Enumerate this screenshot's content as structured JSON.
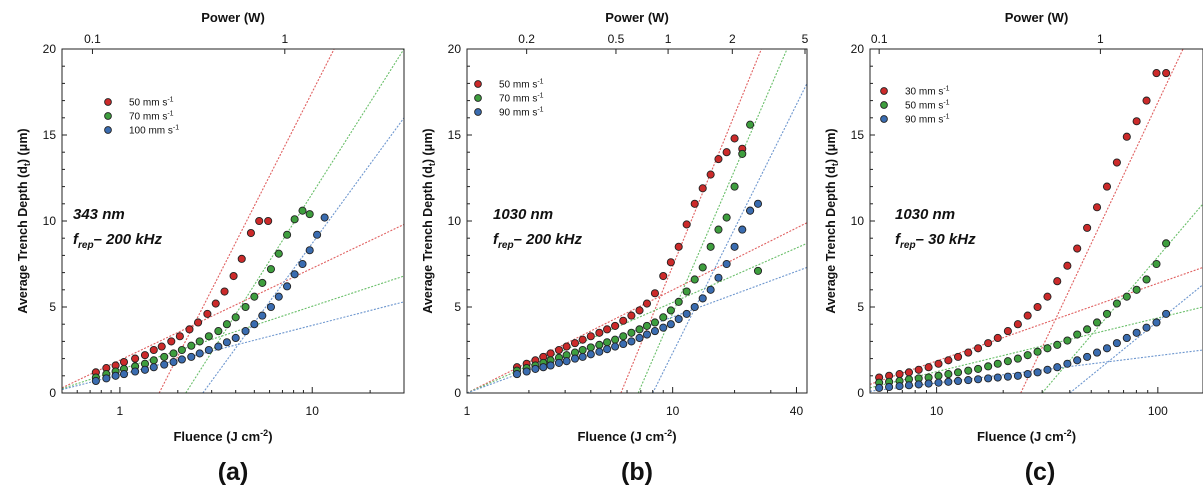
{
  "chart_data": [
    {
      "type": "scatter",
      "panel_label": "(a)",
      "xlabel": "Fluence  (J cm",
      "xlabel_sup": "-2",
      "xlabel_end": ")",
      "ylabel": "Average Trench Depth (d",
      "ylabel_sub": "t",
      "ylabel_end": ") (μm)",
      "top_axis_title": "Power (W)",
      "x_scale": "log",
      "xlim": [
        0.5,
        30
      ],
      "ylim": [
        0,
        20
      ],
      "x_ticks": [
        1,
        10
      ],
      "x_tick_labels": [
        "1",
        "10"
      ],
      "y_ticks": [
        0,
        5,
        10,
        15,
        20
      ],
      "y_tick_labels": [
        "0",
        "5",
        "10",
        "15",
        "20"
      ],
      "top_ticks": [
        {
          "label": "0.1",
          "x": 0.72
        },
        {
          "label": "1",
          "x": 7.2
        }
      ],
      "annotation": {
        "wavelength": "343 nm",
        "f": "f",
        "sub": "rep",
        "rate": "– 200 kHz"
      },
      "legend_position": "top-left",
      "grid": false,
      "series": [
        {
          "name": "50 mm s",
          "unit_sup": "-1",
          "color": "#cc2a2a",
          "x": [
            0.75,
            0.85,
            0.95,
            1.05,
            1.2,
            1.35,
            1.5,
            1.65,
            1.85,
            2.05,
            2.3,
            2.55,
            2.85,
            3.15,
            3.5,
            3.9,
            4.3,
            4.8,
            5.3,
            5.9
          ],
          "y": [
            1.2,
            1.45,
            1.6,
            1.8,
            2.0,
            2.2,
            2.5,
            2.7,
            3.0,
            3.3,
            3.7,
            4.1,
            4.6,
            5.2,
            5.9,
            6.8,
            7.8,
            9.3,
            10.0,
            10.0
          ]
        },
        {
          "name": "70 mm s",
          "unit_sup": "-1",
          "color": "#3e9e3e",
          "x": [
            0.75,
            0.85,
            0.95,
            1.05,
            1.2,
            1.35,
            1.5,
            1.7,
            1.9,
            2.1,
            2.35,
            2.6,
            2.9,
            3.25,
            3.6,
            4.0,
            4.5,
            5.0,
            5.5,
            6.1,
            6.7,
            7.4,
            8.1,
            8.9,
            9.7
          ],
          "y": [
            0.9,
            1.1,
            1.25,
            1.4,
            1.55,
            1.7,
            1.9,
            2.1,
            2.3,
            2.5,
            2.75,
            3.0,
            3.3,
            3.6,
            4.0,
            4.4,
            5.0,
            5.6,
            6.4,
            7.2,
            8.1,
            9.2,
            10.1,
            10.6,
            10.4
          ]
        },
        {
          "name": "100 mm s",
          "unit_sup": "-1",
          "color": "#3a6cb0",
          "x": [
            0.75,
            0.85,
            0.95,
            1.05,
            1.2,
            1.35,
            1.5,
            1.7,
            1.9,
            2.1,
            2.35,
            2.6,
            2.9,
            3.25,
            3.6,
            4.0,
            4.5,
            5.0,
            5.5,
            6.1,
            6.7,
            7.4,
            8.1,
            8.9,
            9.7,
            10.6,
            11.6
          ],
          "y": [
            0.7,
            0.85,
            1.0,
            1.1,
            1.25,
            1.35,
            1.5,
            1.65,
            1.8,
            1.95,
            2.1,
            2.3,
            2.5,
            2.7,
            2.95,
            3.2,
            3.6,
            4.0,
            4.5,
            5.0,
            5.6,
            6.2,
            6.9,
            7.5,
            8.3,
            9.2,
            10.2
          ]
        }
      ],
      "fit_lines": [
        {
          "color": "#e06060",
          "x": [
            0.5,
            30
          ],
          "y": [
            0.3,
            9.8
          ]
        },
        {
          "color": "#e06060",
          "x": [
            1.6,
            13
          ],
          "y": [
            0,
            20
          ]
        },
        {
          "color": "#6abf6a",
          "x": [
            0.5,
            30
          ],
          "y": [
            0.25,
            6.8
          ]
        },
        {
          "color": "#6abf6a",
          "x": [
            2.2,
            30
          ],
          "y": [
            0,
            20
          ]
        },
        {
          "color": "#6e97cf",
          "x": [
            0.5,
            30
          ],
          "y": [
            0.2,
            5.3
          ]
        },
        {
          "color": "#6e97cf",
          "x": [
            2.7,
            30
          ],
          "y": [
            0,
            16
          ]
        }
      ]
    },
    {
      "type": "scatter",
      "panel_label": "(b)",
      "xlabel": "Fluence  (J cm",
      "xlabel_sup": "-2",
      "xlabel_end": ")",
      "top_axis_title": "Power (W)",
      "x_scale": "log",
      "xlim": [
        1,
        45
      ],
      "ylim": [
        0,
        20
      ],
      "x_ticks": [
        1,
        10,
        40
      ],
      "x_tick_labels": [
        "1",
        "10",
        "40"
      ],
      "y_ticks": [
        0,
        5,
        10,
        15,
        20
      ],
      "y_tick_labels": [
        "0",
        "5",
        "10",
        "15",
        "20"
      ],
      "top_ticks": [
        {
          "label": "0.2",
          "x": 1.95
        },
        {
          "label": "0.5",
          "x": 5.3
        },
        {
          "label": "1",
          "x": 9.5
        },
        {
          "label": "2",
          "x": 19.5
        },
        {
          "label": "5",
          "x": 44
        }
      ],
      "annotation": {
        "wavelength": "1030 nm",
        "f": "f",
        "sub": "rep",
        "rate": "– 200 kHz"
      },
      "legend_position": "top-left",
      "grid": false,
      "series": [
        {
          "name": "50 mm s",
          "unit_sup": "-1",
          "color": "#cc2a2a",
          "x": [
            1.75,
            1.95,
            2.15,
            2.35,
            2.55,
            2.8,
            3.05,
            3.35,
            3.65,
            4.0,
            4.4,
            4.8,
            5.25,
            5.75,
            6.3,
            6.9,
            7.5,
            8.2,
            9.0,
            9.8,
            10.7,
            11.7,
            12.8,
            14.0,
            15.3,
            16.7,
            18.3,
            20.0,
            21.8,
            23.8
          ],
          "y": [
            1.5,
            1.7,
            1.9,
            2.1,
            2.3,
            2.5,
            2.7,
            2.9,
            3.1,
            3.3,
            3.5,
            3.7,
            3.9,
            4.2,
            4.5,
            4.8,
            5.2,
            5.8,
            6.8,
            7.6,
            8.5,
            9.8,
            11.0,
            11.9,
            12.7,
            13.6,
            14.0,
            14.8,
            14.2,
            10.6
          ]
        },
        {
          "name": "70 mm s",
          "unit_sup": "-1",
          "color": "#3e9e3e",
          "x": [
            1.75,
            1.95,
            2.15,
            2.35,
            2.55,
            2.8,
            3.05,
            3.35,
            3.65,
            4.0,
            4.4,
            4.8,
            5.25,
            5.75,
            6.3,
            6.9,
            7.5,
            8.2,
            9.0,
            9.8,
            10.7,
            11.7,
            12.8,
            14.0,
            15.3,
            16.7,
            18.3,
            20.0,
            21.8,
            23.8,
            26.0
          ],
          "y": [
            1.3,
            1.45,
            1.6,
            1.75,
            1.9,
            2.05,
            2.2,
            2.35,
            2.5,
            2.65,
            2.8,
            2.95,
            3.1,
            3.3,
            3.5,
            3.7,
            3.9,
            4.1,
            4.4,
            4.8,
            5.3,
            5.9,
            6.6,
            7.3,
            8.5,
            9.5,
            10.2,
            12.0,
            13.9,
            15.6,
            7.1
          ]
        },
        {
          "name": "90 mm s",
          "unit_sup": "-1",
          "color": "#3a6cb0",
          "x": [
            1.75,
            1.95,
            2.15,
            2.35,
            2.55,
            2.8,
            3.05,
            3.35,
            3.65,
            4.0,
            4.4,
            4.8,
            5.25,
            5.75,
            6.3,
            6.9,
            7.5,
            8.2,
            9.0,
            9.8,
            10.7,
            11.7,
            12.8,
            14.0,
            15.3,
            16.7,
            18.3,
            20.0,
            21.8,
            23.8,
            26.0
          ],
          "y": [
            1.1,
            1.25,
            1.4,
            1.5,
            1.6,
            1.75,
            1.85,
            2.0,
            2.1,
            2.25,
            2.4,
            2.55,
            2.7,
            2.85,
            3.0,
            3.2,
            3.4,
            3.6,
            3.8,
            4.0,
            4.3,
            4.6,
            5.0,
            5.5,
            6.0,
            6.7,
            7.5,
            8.5,
            9.5,
            10.6,
            11.0
          ]
        }
      ],
      "fit_lines": [
        {
          "color": "#e06060",
          "x": [
            1,
            45
          ],
          "y": [
            0,
            9.9
          ]
        },
        {
          "color": "#e06060",
          "x": [
            5.6,
            27
          ],
          "y": [
            0,
            20
          ]
        },
        {
          "color": "#6abf6a",
          "x": [
            1,
            45
          ],
          "y": [
            0,
            8.7
          ]
        },
        {
          "color": "#6abf6a",
          "x": [
            6.8,
            36
          ],
          "y": [
            0,
            20
          ]
        },
        {
          "color": "#6e97cf",
          "x": [
            1,
            45
          ],
          "y": [
            0,
            7.3
          ]
        },
        {
          "color": "#6e97cf",
          "x": [
            8.0,
            45
          ],
          "y": [
            0,
            18
          ]
        }
      ]
    },
    {
      "type": "scatter",
      "panel_label": "(c)",
      "xlabel": "Fluence  (J cm",
      "xlabel_sup": "-2",
      "xlabel_end": ")",
      "top_axis_title": "Power (W)",
      "x_scale": "log",
      "xlim": [
        5,
        160
      ],
      "ylim": [
        0,
        20
      ],
      "x_ticks": [
        10,
        100
      ],
      "x_tick_labels": [
        "10",
        "100"
      ],
      "y_ticks": [
        0,
        5,
        10,
        15,
        20
      ],
      "y_tick_labels": [
        "0",
        "5",
        "10",
        "15",
        "20"
      ],
      "top_ticks": [
        {
          "label": "0.1",
          "x": 5.5
        },
        {
          "label": "1",
          "x": 55
        }
      ],
      "annotation": {
        "wavelength": "1030 nm",
        "f": "f",
        "sub": "rep",
        "rate": "– 30 kHz"
      },
      "legend_position": "top-left",
      "grid": false,
      "series": [
        {
          "name": "30 mm s",
          "unit_sup": "-1",
          "color": "#cc2a2a",
          "x": [
            5.5,
            6.1,
            6.8,
            7.5,
            8.3,
            9.2,
            10.2,
            11.3,
            12.5,
            13.9,
            15.4,
            17.1,
            18.9,
            21.0,
            23.3,
            25.8,
            28.6,
            31.7,
            35.1,
            39.0,
            43.2,
            47.9,
            53.1,
            58.9,
            65.3,
            72.4,
            80.2,
            88.9,
            98.6,
            109
          ],
          "y": [
            0.9,
            1.0,
            1.1,
            1.2,
            1.35,
            1.5,
            1.7,
            1.9,
            2.1,
            2.35,
            2.6,
            2.9,
            3.2,
            3.6,
            4.0,
            4.5,
            5.0,
            5.6,
            6.5,
            7.4,
            8.4,
            9.6,
            10.8,
            12.0,
            13.4,
            14.9,
            15.8,
            17.0,
            18.6,
            18.6
          ]
        },
        {
          "name": "50 mm s",
          "unit_sup": "-1",
          "color": "#3e9e3e",
          "x": [
            5.5,
            6.1,
            6.8,
            7.5,
            8.3,
            9.2,
            10.2,
            11.3,
            12.5,
            13.9,
            15.4,
            17.1,
            18.9,
            21.0,
            23.3,
            25.8,
            28.6,
            31.7,
            35.1,
            39.0,
            43.2,
            47.9,
            53.1,
            58.9,
            65.3,
            72.4,
            80.2,
            88.9,
            98.6,
            109
          ],
          "y": [
            0.6,
            0.65,
            0.7,
            0.8,
            0.85,
            0.9,
            1.0,
            1.1,
            1.2,
            1.3,
            1.4,
            1.55,
            1.7,
            1.85,
            2.0,
            2.2,
            2.4,
            2.6,
            2.8,
            3.05,
            3.4,
            3.7,
            4.1,
            4.6,
            5.2,
            5.6,
            6.0,
            6.6,
            7.5,
            8.7
          ]
        },
        {
          "name": "90 mm s",
          "unit_sup": "-1",
          "color": "#3a6cb0",
          "x": [
            5.5,
            6.1,
            6.8,
            7.5,
            8.3,
            9.2,
            10.2,
            11.3,
            12.5,
            13.9,
            15.4,
            17.1,
            18.9,
            21.0,
            23.3,
            25.8,
            28.6,
            31.7,
            35.1,
            39.0,
            43.2,
            47.9,
            53.1,
            58.9,
            65.3,
            72.4,
            80.2,
            88.9,
            98.6,
            109
          ],
          "y": [
            0.3,
            0.35,
            0.4,
            0.45,
            0.5,
            0.55,
            0.6,
            0.65,
            0.7,
            0.75,
            0.8,
            0.85,
            0.9,
            0.95,
            1.0,
            1.1,
            1.2,
            1.35,
            1.5,
            1.7,
            1.9,
            2.1,
            2.35,
            2.6,
            2.9,
            3.2,
            3.5,
            3.8,
            4.1,
            4.6
          ]
        }
      ],
      "fit_lines": [
        {
          "color": "#e06060",
          "x": [
            5,
            160
          ],
          "y": [
            0.5,
            7.3
          ]
        },
        {
          "color": "#e06060",
          "x": [
            24,
            130
          ],
          "y": [
            0,
            20
          ]
        },
        {
          "color": "#6abf6a",
          "x": [
            5,
            160
          ],
          "y": [
            0.3,
            5.0
          ]
        },
        {
          "color": "#6abf6a",
          "x": [
            30,
            160
          ],
          "y": [
            0,
            11
          ]
        },
        {
          "color": "#6e97cf",
          "x": [
            5,
            160
          ],
          "y": [
            0.1,
            2.5
          ]
        },
        {
          "color": "#6e97cf",
          "x": [
            40,
            160
          ],
          "y": [
            0,
            6.3
          ]
        }
      ]
    }
  ]
}
